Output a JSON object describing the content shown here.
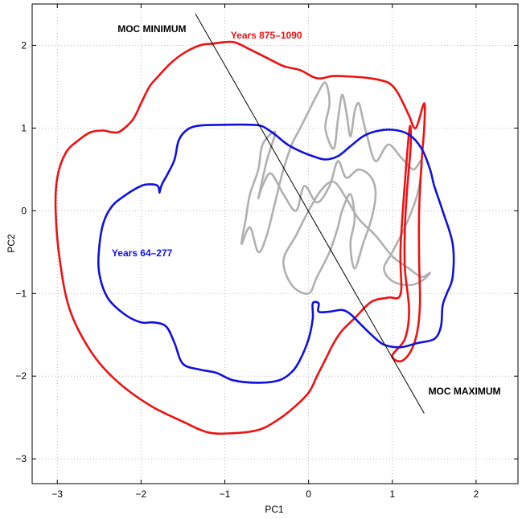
{
  "chart_data": {
    "type": "line",
    "title": "",
    "xlabel": "PC1",
    "ylabel": "PC2",
    "xlim": [
      -3.3,
      2.5
    ],
    "ylim": [
      -3.3,
      2.5
    ],
    "xticks": [
      -3,
      -2,
      -1,
      0,
      1,
      2
    ],
    "yticks": [
      -3,
      -2,
      -1,
      0,
      1,
      2
    ],
    "grid": true,
    "colors": {
      "red": "#ee1111",
      "blue": "#1111dd",
      "gray": "#b0b0b0",
      "line": "#000000"
    },
    "series": [
      {
        "name": "Years 875–1090",
        "color": "#ee1111",
        "points": [
          [
            -1.15,
            2.02
          ],
          [
            -0.9,
            2.04
          ],
          [
            -0.7,
            1.95
          ],
          [
            -0.5,
            1.85
          ],
          [
            -0.3,
            1.75
          ],
          [
            -0.1,
            1.7
          ],
          [
            0.05,
            1.62
          ],
          [
            0.15,
            1.6
          ],
          [
            0.3,
            1.63
          ],
          [
            0.55,
            1.62
          ],
          [
            0.75,
            1.6
          ],
          [
            0.95,
            1.55
          ],
          [
            1.05,
            1.45
          ],
          [
            1.13,
            1.3
          ],
          [
            1.2,
            1.15
          ],
          [
            1.28,
            1.0
          ],
          [
            1.38,
            1.3
          ],
          [
            1.38,
            1.0
          ],
          [
            1.35,
            0.6
          ],
          [
            1.32,
            0.0
          ],
          [
            1.32,
            -0.6
          ],
          [
            1.33,
            -1.1
          ],
          [
            1.3,
            -1.45
          ],
          [
            1.22,
            -1.7
          ],
          [
            1.1,
            -1.82
          ],
          [
            1.0,
            -1.75
          ],
          [
            1.15,
            -1.55
          ],
          [
            1.2,
            -1.2
          ],
          [
            1.15,
            -0.7
          ],
          [
            1.15,
            -0.2
          ],
          [
            1.18,
            0.3
          ],
          [
            1.22,
            0.8
          ],
          [
            1.2,
            0.95
          ],
          [
            1.1,
            -0.4
          ],
          [
            1.1,
            -1.0
          ],
          [
            0.95,
            -1.05
          ],
          [
            0.75,
            -1.1
          ],
          [
            0.55,
            -1.3
          ],
          [
            0.4,
            -1.45
          ],
          [
            0.3,
            -1.6
          ],
          [
            0.2,
            -1.8
          ],
          [
            0.1,
            -2.0
          ],
          [
            0.0,
            -2.2
          ],
          [
            -0.2,
            -2.4
          ],
          [
            -0.4,
            -2.55
          ],
          [
            -0.6,
            -2.65
          ],
          [
            -0.9,
            -2.69
          ],
          [
            -1.2,
            -2.68
          ],
          [
            -1.5,
            -2.55
          ],
          [
            -1.9,
            -2.35
          ],
          [
            -2.3,
            -2.05
          ],
          [
            -2.6,
            -1.7
          ],
          [
            -2.85,
            -1.2
          ],
          [
            -2.97,
            -0.6
          ],
          [
            -3.02,
            0.0
          ],
          [
            -3.0,
            0.4
          ],
          [
            -2.9,
            0.7
          ],
          [
            -2.75,
            0.85
          ],
          [
            -2.6,
            0.95
          ],
          [
            -2.45,
            0.97
          ],
          [
            -2.35,
            0.95
          ],
          [
            -2.25,
            0.96
          ],
          [
            -2.1,
            1.1
          ],
          [
            -2.0,
            1.3
          ],
          [
            -1.9,
            1.5
          ],
          [
            -1.8,
            1.62
          ],
          [
            -1.65,
            1.78
          ],
          [
            -1.5,
            1.9
          ],
          [
            -1.3,
            2.0
          ],
          [
            -1.15,
            2.02
          ]
        ]
      },
      {
        "name": "Years 64–277",
        "color": "#1111dd",
        "points": [
          [
            -1.78,
            0.22
          ],
          [
            -1.75,
            0.32
          ],
          [
            -1.68,
            0.45
          ],
          [
            -1.6,
            0.62
          ],
          [
            -1.55,
            0.85
          ],
          [
            -1.45,
            0.98
          ],
          [
            -1.3,
            1.03
          ],
          [
            -1.0,
            1.04
          ],
          [
            -0.7,
            1.04
          ],
          [
            -0.55,
            1.02
          ],
          [
            -0.4,
            0.92
          ],
          [
            -0.25,
            0.8
          ],
          [
            -0.1,
            0.72
          ],
          [
            0.05,
            0.66
          ],
          [
            0.2,
            0.62
          ],
          [
            0.35,
            0.66
          ],
          [
            0.5,
            0.78
          ],
          [
            0.65,
            0.9
          ],
          [
            0.8,
            0.96
          ],
          [
            1.0,
            0.98
          ],
          [
            1.2,
            0.92
          ],
          [
            1.35,
            0.75
          ],
          [
            1.45,
            0.5
          ],
          [
            1.5,
            0.3
          ],
          [
            1.6,
            0.0
          ],
          [
            1.72,
            -0.4
          ],
          [
            1.72,
            -0.8
          ],
          [
            1.65,
            -1.0
          ],
          [
            1.6,
            -1.15
          ],
          [
            1.58,
            -1.4
          ],
          [
            1.5,
            -1.55
          ],
          [
            1.3,
            -1.6
          ],
          [
            1.1,
            -1.65
          ],
          [
            0.9,
            -1.62
          ],
          [
            0.75,
            -1.5
          ],
          [
            0.6,
            -1.35
          ],
          [
            0.5,
            -1.25
          ],
          [
            0.4,
            -1.2
          ],
          [
            0.25,
            -1.22
          ],
          [
            0.12,
            -1.22
          ],
          [
            0.12,
            -1.12
          ],
          [
            0.05,
            -1.12
          ],
          [
            0.05,
            -1.3
          ],
          [
            0.0,
            -1.55
          ],
          [
            -0.1,
            -1.8
          ],
          [
            -0.2,
            -1.95
          ],
          [
            -0.35,
            -2.05
          ],
          [
            -0.6,
            -2.08
          ],
          [
            -0.9,
            -2.05
          ],
          [
            -1.1,
            -1.96
          ],
          [
            -1.3,
            -1.92
          ],
          [
            -1.5,
            -1.85
          ],
          [
            -1.6,
            -1.6
          ],
          [
            -1.7,
            -1.4
          ],
          [
            -1.85,
            -1.35
          ],
          [
            -2.0,
            -1.35
          ],
          [
            -2.2,
            -1.25
          ],
          [
            -2.4,
            -1.05
          ],
          [
            -2.5,
            -0.75
          ],
          [
            -2.5,
            -0.45
          ],
          [
            -2.45,
            -0.15
          ],
          [
            -2.35,
            0.05
          ],
          [
            -2.2,
            0.18
          ],
          [
            -2.0,
            0.3
          ],
          [
            -1.88,
            0.32
          ],
          [
            -1.8,
            0.3
          ],
          [
            -1.78,
            0.22
          ]
        ]
      },
      {
        "name": "",
        "color": "#b0b0b0",
        "points": [
          [
            -0.6,
            0.15
          ],
          [
            -0.5,
            0.6
          ],
          [
            -0.4,
            0.95
          ],
          [
            -0.55,
            0.8
          ],
          [
            -0.6,
            0.5
          ],
          [
            -0.7,
            0.2
          ],
          [
            -0.75,
            -0.1
          ],
          [
            -0.8,
            -0.4
          ],
          [
            -0.7,
            -0.2
          ],
          [
            -0.6,
            -0.5
          ],
          [
            -0.5,
            -0.3
          ],
          [
            -0.4,
            0.1
          ],
          [
            -0.3,
            0.5
          ],
          [
            -0.2,
            0.8
          ],
          [
            -0.1,
            1.0
          ],
          [
            0.0,
            1.2
          ],
          [
            0.1,
            1.4
          ],
          [
            0.2,
            1.55
          ],
          [
            0.25,
            1.3
          ],
          [
            0.2,
            1.0
          ],
          [
            0.3,
            0.75
          ],
          [
            0.35,
            1.1
          ],
          [
            0.4,
            1.4
          ],
          [
            0.45,
            1.2
          ],
          [
            0.5,
            0.9
          ],
          [
            0.55,
            1.2
          ],
          [
            0.6,
            1.3
          ],
          [
            0.65,
            1.1
          ],
          [
            0.7,
            0.9
          ],
          [
            0.8,
            0.6
          ],
          [
            0.95,
            0.8
          ],
          [
            1.1,
            0.65
          ],
          [
            1.25,
            0.5
          ],
          [
            1.35,
            0.6
          ],
          [
            1.3,
            0.2
          ],
          [
            1.15,
            -0.2
          ],
          [
            1.0,
            -0.5
          ],
          [
            0.9,
            -0.7
          ],
          [
            1.0,
            -0.85
          ],
          [
            1.2,
            -0.9
          ],
          [
            1.35,
            -0.85
          ],
          [
            1.45,
            -0.75
          ],
          [
            1.35,
            -0.8
          ],
          [
            1.2,
            -0.7
          ],
          [
            1.0,
            -0.55
          ],
          [
            0.8,
            -0.3
          ],
          [
            0.6,
            -0.1
          ],
          [
            0.45,
            0.15
          ],
          [
            0.3,
            0.35
          ],
          [
            0.15,
            0.25
          ],
          [
            0.0,
            0.0
          ],
          [
            -0.15,
            -0.3
          ],
          [
            -0.3,
            -0.6
          ],
          [
            -0.2,
            -0.9
          ],
          [
            0.0,
            -1.0
          ],
          [
            0.1,
            -0.8
          ],
          [
            0.25,
            -0.5
          ],
          [
            0.35,
            -0.2
          ],
          [
            0.4,
            0.0
          ],
          [
            0.5,
            0.2
          ],
          [
            0.55,
            -0.1
          ],
          [
            0.5,
            -0.4
          ],
          [
            0.55,
            -0.7
          ],
          [
            0.65,
            -0.4
          ],
          [
            0.75,
            -0.1
          ],
          [
            0.8,
            0.2
          ],
          [
            0.75,
            0.4
          ],
          [
            0.6,
            0.5
          ],
          [
            0.45,
            0.4
          ],
          [
            0.35,
            0.6
          ],
          [
            0.25,
            0.3
          ],
          [
            0.1,
            0.1
          ],
          [
            -0.05,
            0.3
          ],
          [
            -0.15,
            0.0
          ],
          [
            -0.3,
            0.2
          ],
          [
            -0.45,
            0.45
          ],
          [
            -0.55,
            0.3
          ],
          [
            -0.6,
            0.15
          ]
        ]
      }
    ],
    "reference_line": {
      "from": [
        -1.35,
        2.38
      ],
      "to": [
        1.38,
        -2.45
      ]
    },
    "annotations": [
      {
        "text": "MOC MINIMUM",
        "x": -2.28,
        "y": 2.16,
        "color": "#000000"
      },
      {
        "text": "Years 875–1090",
        "x": -0.93,
        "y": 2.08,
        "color": "#ee1111"
      },
      {
        "text": "Years 64–277",
        "x": -2.35,
        "y": -0.55,
        "color": "#1111dd"
      },
      {
        "text": "MOC MAXIMUM",
        "x": 1.43,
        "y": -2.22,
        "color": "#000000"
      }
    ]
  }
}
